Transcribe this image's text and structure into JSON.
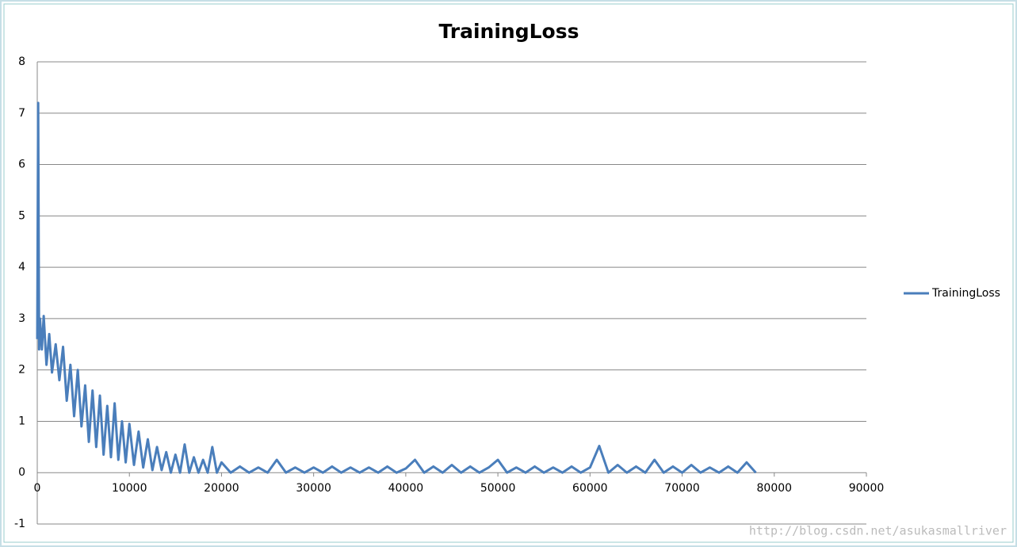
{
  "chart_data": {
    "type": "line",
    "title": "TrainingLoss",
    "x": [
      0,
      100,
      200,
      300,
      500,
      700,
      1000,
      1300,
      1600,
      2000,
      2400,
      2800,
      3200,
      3600,
      4000,
      4400,
      4800,
      5200,
      5600,
      6000,
      6400,
      6800,
      7200,
      7600,
      8000,
      8400,
      8800,
      9200,
      9600,
      10000,
      10500,
      11000,
      11500,
      12000,
      12500,
      13000,
      13500,
      14000,
      14500,
      15000,
      15500,
      16000,
      16500,
      17000,
      17500,
      18000,
      18500,
      19000,
      19500,
      20000,
      21000,
      22000,
      23000,
      24000,
      25000,
      26000,
      27000,
      28000,
      29000,
      30000,
      31000,
      32000,
      33000,
      34000,
      35000,
      36000,
      37000,
      38000,
      39000,
      40000,
      41000,
      42000,
      43000,
      44000,
      45000,
      46000,
      47000,
      48000,
      49000,
      50000,
      51000,
      52000,
      53000,
      54000,
      55000,
      56000,
      57000,
      58000,
      59000,
      60000,
      61000,
      62000,
      63000,
      64000,
      65000,
      66000,
      67000,
      68000,
      69000,
      70000,
      71000,
      72000,
      73000,
      74000,
      75000,
      76000,
      77000,
      78000
    ],
    "series": [
      {
        "name": "TrainingLoss",
        "color": "#4a7ebb",
        "values": [
          2.6,
          7.2,
          2.4,
          3.0,
          2.4,
          3.05,
          2.1,
          2.7,
          1.95,
          2.5,
          1.8,
          2.45,
          1.4,
          2.1,
          1.1,
          2.0,
          0.9,
          1.7,
          0.6,
          1.6,
          0.5,
          1.5,
          0.35,
          1.3,
          0.3,
          1.35,
          0.25,
          1.0,
          0.2,
          0.95,
          0.15,
          0.8,
          0.1,
          0.65,
          0.05,
          0.5,
          0.05,
          0.4,
          0,
          0.35,
          0,
          0.55,
          0,
          0.3,
          0,
          0.25,
          0,
          0.5,
          0,
          0.2,
          0,
          0.12,
          0,
          0.1,
          0,
          0.25,
          0,
          0.1,
          0,
          0.1,
          0,
          0.12,
          0,
          0.1,
          0,
          0.1,
          0,
          0.12,
          0,
          0.08,
          0.25,
          0,
          0.12,
          0,
          0.15,
          0,
          0.12,
          0,
          0.1,
          0.25,
          0,
          0.1,
          0,
          0.12,
          0,
          0.1,
          0,
          0.12,
          0,
          0.1,
          0.52,
          0,
          0.15,
          0,
          0.12,
          0,
          0.25,
          0,
          0.12,
          0,
          0.15,
          0,
          0.1,
          0,
          0.12,
          0,
          0.2,
          0
        ]
      }
    ],
    "xlim": [
      0,
      90000
    ],
    "xticks": [
      0,
      10000,
      20000,
      30000,
      40000,
      50000,
      60000,
      70000,
      80000,
      90000
    ],
    "ylim": [
      -1,
      8
    ],
    "yticks": [
      -1,
      0,
      1,
      2,
      3,
      4,
      5,
      6,
      7,
      8
    ],
    "grid": true,
    "legend": "right",
    "watermark": "http://blog.csdn.net/asukasmallriver"
  }
}
